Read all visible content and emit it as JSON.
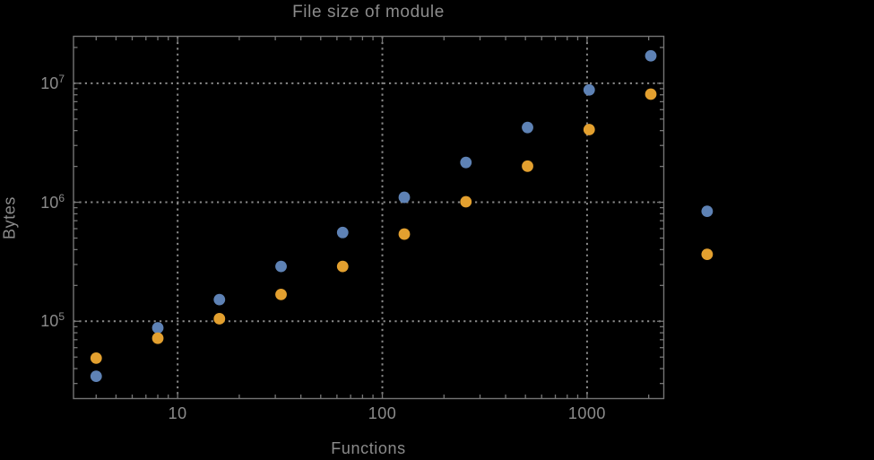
{
  "chart_data": {
    "type": "scatter",
    "title": "File size of module",
    "xlabel": "Functions",
    "ylabel": "Bytes",
    "xscale": "log",
    "yscale": "log",
    "grid": "dotted",
    "legend": "none",
    "xlim": [
      3.1,
      2370
    ],
    "ylim": [
      22400,
      24800000
    ],
    "x_ticks": [
      10,
      100,
      1000
    ],
    "y_ticks": [
      100000,
      1000000,
      10000000
    ],
    "x": [
      4,
      8,
      16,
      32,
      64,
      128,
      256,
      512,
      1024,
      2048,
      3860
    ],
    "series": [
      {
        "name": "blue",
        "color": "#5e82b5",
        "values": [
          34500,
          88000,
          152000,
          289000,
          557000,
          1100000,
          2160000,
          4250000,
          8800000,
          17000000,
          840000
        ]
      },
      {
        "name": "orange",
        "color": "#e3a02f",
        "values": [
          49000,
          72000,
          105000,
          168000,
          289000,
          540000,
          1010000,
          2010000,
          4080000,
          8100000,
          365000
        ]
      }
    ],
    "note_points_outside_frame": "last x pair (~3860) is drawn right of the plot frame"
  },
  "style": {
    "background": "#000000",
    "text_color": "#8b8b8b",
    "frame_color": "#747474",
    "grid_color": "#8a8a8a",
    "point_colors": [
      "#5e82b5",
      "#e3a02f"
    ]
  }
}
